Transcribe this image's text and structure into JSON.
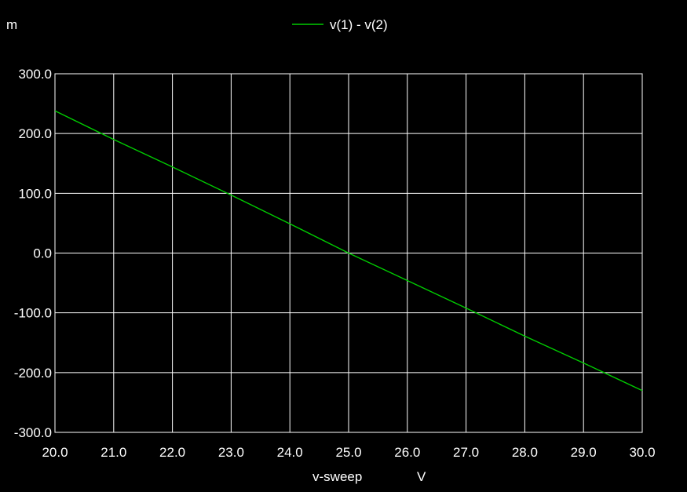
{
  "chart_data": {
    "type": "line",
    "title": "",
    "y_unit_prefix": "m",
    "xlabel": "v-sweep",
    "xunit": "V",
    "xlim": [
      20.0,
      30.0
    ],
    "ylim": [
      -300.0,
      300.0
    ],
    "x_ticks": [
      "20.0",
      "21.0",
      "22.0",
      "23.0",
      "24.0",
      "25.0",
      "26.0",
      "27.0",
      "28.0",
      "29.0",
      "30.0"
    ],
    "y_ticks": [
      "300.0",
      "200.0",
      "100.0",
      "0.0",
      "-100.0",
      "-200.0",
      "-300.0"
    ],
    "grid": true,
    "legend_position": "top-center",
    "series": [
      {
        "name": "v(1) - v(2)",
        "color": "#00cc00",
        "x": [
          20.0,
          21.0,
          22.0,
          23.0,
          24.0,
          25.0,
          26.0,
          27.0,
          28.0,
          29.0,
          30.0
        ],
        "y": [
          238,
          190,
          144,
          97,
          49,
          0,
          -46,
          -92,
          -139,
          -184,
          -230
        ]
      }
    ]
  }
}
